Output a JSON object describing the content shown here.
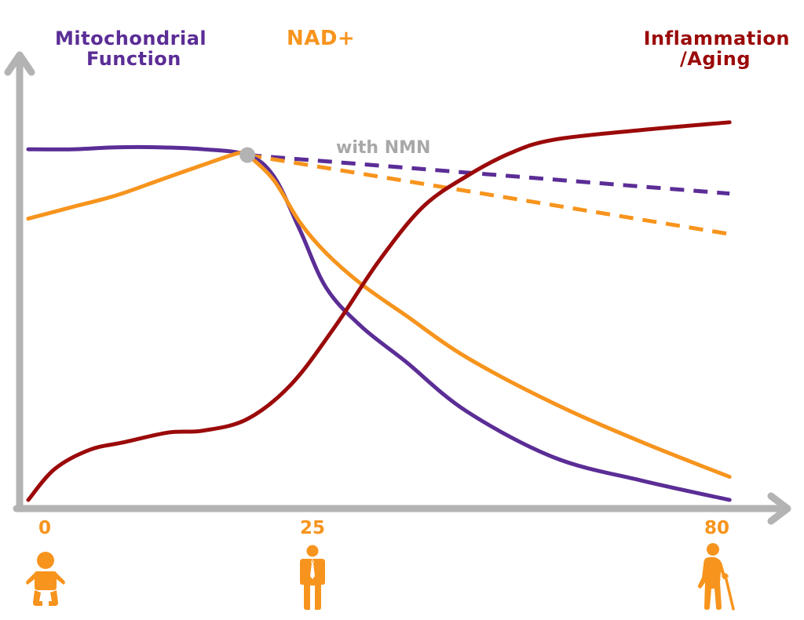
{
  "legend": {
    "mitochondrial_line1": "Mitochondrial",
    "mitochondrial_line2": "Function",
    "nad": "NAD+",
    "inflammation_line1": "Inflammation",
    "inflammation_line2": "/Aging"
  },
  "annotation": {
    "with_nmn": "with NMN"
  },
  "axis": {
    "ticks": [
      {
        "value": 0,
        "label": "0",
        "icon": "baby-icon"
      },
      {
        "value": 25,
        "label": "25",
        "icon": "adult-icon"
      },
      {
        "value": 80,
        "label": "80",
        "icon": "elderly-icon"
      }
    ]
  },
  "colors": {
    "mitochondrial": "#5b2d96",
    "nad": "#f7941d",
    "inflammation": "#9b0a0a",
    "axis": "#b3b3b3",
    "nmn_marker": "#b3b3b3",
    "icon": "#f7941d"
  },
  "chart_data": {
    "type": "line",
    "title": "",
    "xlabel": "",
    "ylabel": "",
    "xlim": [
      0,
      85
    ],
    "ylim": [
      0,
      100
    ],
    "x_ticks": [
      0,
      25,
      80
    ],
    "grid": false,
    "series": [
      {
        "name": "Mitochondrial Function",
        "color": "#5b2d96",
        "style": "solid",
        "x": [
          0,
          5,
          10,
          15,
          20,
          25,
          28,
          31,
          34,
          38,
          43,
          50,
          60,
          70,
          80
        ],
        "y": [
          91,
          91,
          91.5,
          91.5,
          91,
          89.5,
          84,
          70,
          55,
          45,
          36,
          23,
          11,
          5,
          0
        ]
      },
      {
        "name": "NAD+",
        "color": "#f7941d",
        "style": "solid",
        "x": [
          0,
          5,
          10,
          15,
          20,
          24,
          25,
          28,
          31,
          34,
          38,
          43,
          50,
          60,
          70,
          80
        ],
        "y": [
          73,
          76,
          79,
          83,
          87,
          90,
          89.5,
          83,
          72,
          64,
          56,
          48,
          37,
          25,
          15,
          6
        ]
      },
      {
        "name": "Inflammation/Aging",
        "color": "#9b0a0a",
        "style": "solid",
        "x": [
          0,
          3,
          7,
          11,
          16,
          20,
          25,
          30,
          35,
          40,
          45,
          50,
          55,
          60,
          70,
          80
        ],
        "y": [
          0,
          8,
          13,
          15,
          17.5,
          18,
          21,
          30,
          45,
          62,
          76,
          84,
          90,
          93.5,
          96,
          98
        ]
      },
      {
        "name": "Mitochondrial Function with NMN",
        "color": "#5b2d96",
        "style": "dashed",
        "x": [
          25,
          80
        ],
        "y": [
          89.5,
          79.5
        ]
      },
      {
        "name": "NAD+ with NMN",
        "color": "#f7941d",
        "style": "dashed",
        "x": [
          25,
          80
        ],
        "y": [
          89.5,
          69
        ]
      }
    ],
    "annotations": [
      {
        "text": "with NMN",
        "x": 25,
        "y": 89.5
      }
    ]
  }
}
